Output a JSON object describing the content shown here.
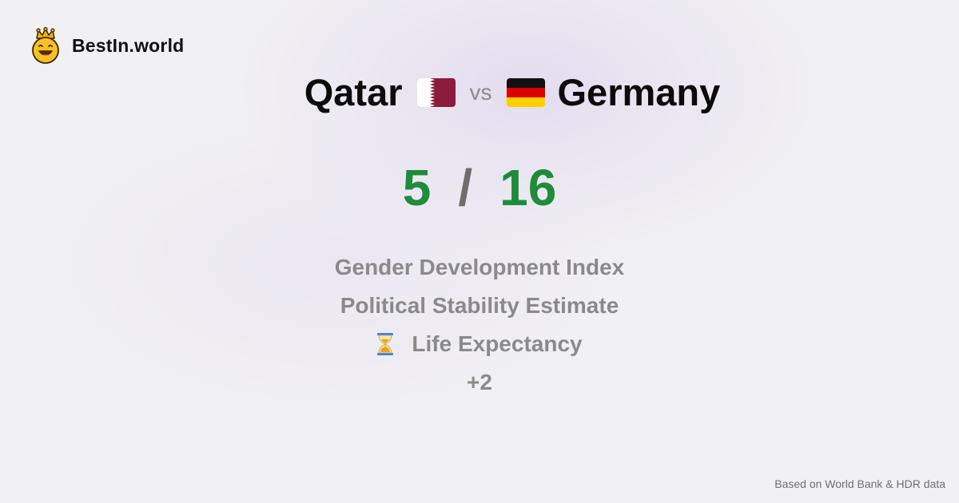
{
  "brand": {
    "name": "BestIn.world",
    "logo_icon": "smiling-crown-face-icon"
  },
  "comparison": {
    "left_country": "Qatar",
    "left_flag_icon": "qatar-flag-icon",
    "vs_label": "vs",
    "right_flag_icon": "germany-flag-icon",
    "right_country": "Germany"
  },
  "score": {
    "left": "5",
    "separator": "/",
    "right": "16",
    "color": "#1e8c3a"
  },
  "metrics": {
    "items": [
      {
        "label": "Gender Development Index"
      },
      {
        "label": "Political Stability Estimate"
      },
      {
        "label": "Life Expectancy",
        "icon": "hourglass-icon"
      }
    ],
    "more_label": "+2"
  },
  "footer": {
    "source_note": "Based on World Bank & HDR data"
  }
}
